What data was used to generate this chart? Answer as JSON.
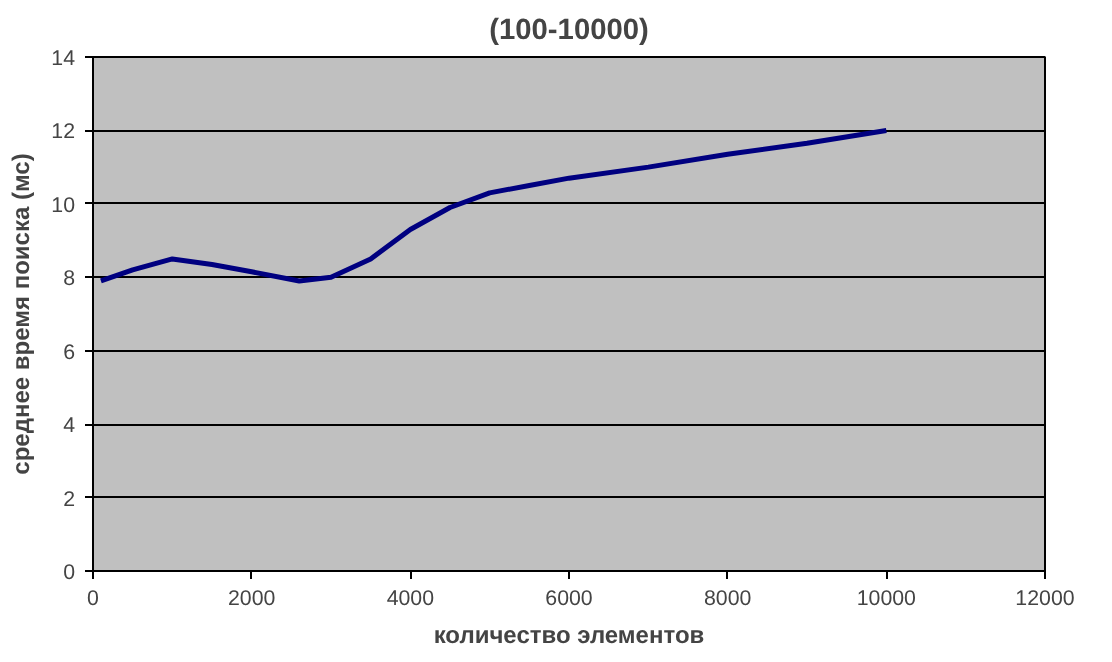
{
  "chart_data": {
    "type": "line",
    "title": "(100-10000)",
    "xlabel": "количество элементов",
    "ylabel": "среднее время поиска (мс)",
    "x": [
      100,
      500,
      1000,
      1500,
      2000,
      2600,
      3000,
      3500,
      4000,
      4500,
      5000,
      5500,
      6000,
      7000,
      8000,
      9000,
      10000
    ],
    "series": [
      {
        "color": "#000080",
        "values": [
          7.9,
          8.2,
          8.5,
          8.35,
          8.15,
          7.9,
          8.0,
          8.5,
          9.3,
          9.9,
          10.3,
          10.5,
          10.7,
          11.0,
          11.35,
          11.65,
          12.0
        ]
      }
    ],
    "xlim": [
      0,
      12000
    ],
    "xticks": [
      0,
      2000,
      4000,
      6000,
      8000,
      10000,
      12000
    ],
    "ylim": [
      0,
      14
    ],
    "yticks": [
      0,
      2,
      4,
      6,
      8,
      10,
      12,
      14
    ],
    "grid": "y",
    "marker": "none",
    "line_style": "solid"
  }
}
